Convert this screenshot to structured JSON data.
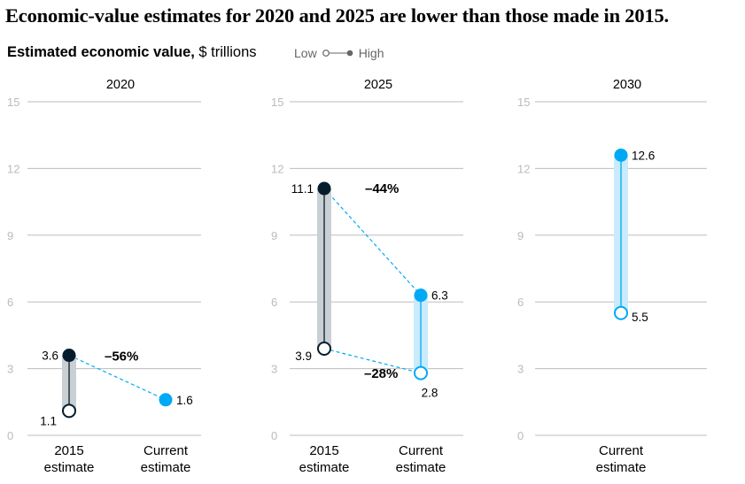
{
  "title": "Economic-value estimates for 2020 and 2025 are lower than those made in 2015.",
  "subtitle": {
    "bold": "Estimated economic value,",
    "rest": " $ trillions"
  },
  "legend": {
    "low": "Low",
    "high": "High"
  },
  "colors": {
    "dark": "#051c2c",
    "accent": "#00a9f4",
    "dark_band": "#c9cfd3",
    "accent_band": "#c9ebfb",
    "grid": "#bdbdbd",
    "axis_text": "#bbbbbb"
  },
  "chart_data": {
    "type": "range-dot",
    "unit": "$ trillions",
    "y_ticks": [
      "15",
      "12",
      "9",
      "6",
      "3",
      "0"
    ],
    "ylim": [
      0,
      15
    ],
    "grid": true,
    "panels": [
      {
        "title": "2020",
        "categories": [
          "2015\nestimate",
          "Current\nestimate"
        ],
        "ranges": [
          {
            "category": "2015\nestimate",
            "series": "2015 estimate",
            "low": 1.1,
            "high": 3.6,
            "low_label": "1.1",
            "high_label": "3.6"
          },
          {
            "category": "Current\nestimate",
            "series": "Current estimate",
            "low": 1.6,
            "high": 1.6,
            "low_label": "",
            "high_label": "1.6"
          }
        ],
        "changes": [
          {
            "label": "–56%",
            "from": 3.6,
            "to": 1.6
          }
        ]
      },
      {
        "title": "2025",
        "categories": [
          "2015\nestimate",
          "Current\nestimate"
        ],
        "ranges": [
          {
            "category": "2015\nestimate",
            "series": "2015 estimate",
            "low": 3.9,
            "high": 11.1,
            "low_label": "3.9",
            "high_label": "11.1"
          },
          {
            "category": "Current\nestimate",
            "series": "Current estimate",
            "low": 2.8,
            "high": 6.3,
            "low_label": "2.8",
            "high_label": "6.3"
          }
        ],
        "changes": [
          {
            "label": "–44%",
            "from": 11.1,
            "to": 6.3
          },
          {
            "label": "–28%",
            "from": 3.9,
            "to": 2.8
          }
        ]
      },
      {
        "title": "2030",
        "categories": [
          "Current\nestimate"
        ],
        "ranges": [
          {
            "category": "Current\nestimate",
            "series": "Current estimate",
            "low": 5.5,
            "high": 12.6,
            "low_label": "5.5",
            "high_label": "12.6"
          }
        ],
        "changes": []
      }
    ]
  }
}
